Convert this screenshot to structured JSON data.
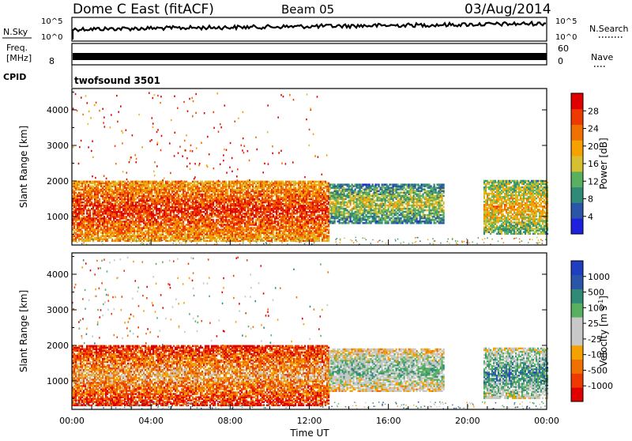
{
  "header": {
    "station": "Dome C East (fitACF)",
    "beam": "Beam 05",
    "date": "03/Aug/2014"
  },
  "top_panels": {
    "nsky_label": "N.Sky",
    "nsky_ticks": [
      "10^5",
      "10^0"
    ],
    "nsearch_label": "N.Search",
    "freq_label_1": "Freq.",
    "freq_label_2": "[MHz]",
    "freq_tick": "8",
    "nave_label": "Nave",
    "nave_ticks": [
      "60",
      "0"
    ],
    "cpid_label": "CPID",
    "cpid_value": "twofsound 3501"
  },
  "colors": {
    "power_scale": [
      "#1f1fe0",
      "#2a55a8",
      "#2f8a78",
      "#58b060",
      "#d7c030",
      "#f5a200",
      "#f07000",
      "#ee3a00",
      "#e00000"
    ],
    "velocity_scale": [
      "#e00000",
      "#ee3a00",
      "#f07000",
      "#f5a200",
      "#c8c8c8",
      "#c8c8c8",
      "#58b060",
      "#2f8a78",
      "#2a55a8",
      "#1f3fc0"
    ]
  },
  "chart_data": [
    {
      "type": "heatmap",
      "name": "power",
      "xlabel": "",
      "ylabel": "Slant Range [km]",
      "ylim": [
        200,
        4600
      ],
      "yticks": [
        "1000",
        "2000",
        "3000",
        "4000"
      ],
      "xlim": [
        "00:00",
        "24:00"
      ],
      "colorbar_label": "Power [dB]",
      "colorbar_ticks": [
        "4",
        "8",
        "12",
        "16",
        "20",
        "24",
        "28"
      ],
      "colorbar_range": [
        0,
        32
      ],
      "regions": [
        {
          "t_start": 0.0,
          "t_end": 13.0,
          "r_low": 300,
          "r_high": 2000,
          "level": 28
        },
        {
          "t_start": 13.0,
          "t_end": 18.8,
          "r_low": 800,
          "r_high": 1900,
          "level": 16
        },
        {
          "t_start": 20.8,
          "t_end": 24.0,
          "r_low": 500,
          "r_high": 2000,
          "level": 20
        }
      ]
    },
    {
      "type": "heatmap",
      "name": "velocity",
      "xlabel": "Time UT",
      "ylabel": "Slant Range [km]",
      "ylim": [
        200,
        4600
      ],
      "yticks": [
        "1000",
        "2000",
        "3000",
        "4000"
      ],
      "xlim": [
        "00:00",
        "24:00"
      ],
      "xticks": [
        "00:00",
        "04:00",
        "08:00",
        "12:00",
        "16:00",
        "20:00",
        "00:00"
      ],
      "colorbar_label": "Velocity [m s^-1]",
      "colorbar_ticks": [
        "-1000",
        "-500",
        "-100",
        "-25",
        "25",
        "100",
        "500",
        "1000"
      ],
      "regions": [
        {
          "t_start": 0.0,
          "t_end": 13.0,
          "r_low": 300,
          "r_high": 2000,
          "level": -100
        },
        {
          "t_start": 13.0,
          "t_end": 18.8,
          "r_low": 700,
          "r_high": 1900,
          "level": 100
        },
        {
          "t_start": 20.8,
          "t_end": 24.0,
          "r_low": 500,
          "r_high": 1900,
          "level": 500
        }
      ]
    }
  ]
}
